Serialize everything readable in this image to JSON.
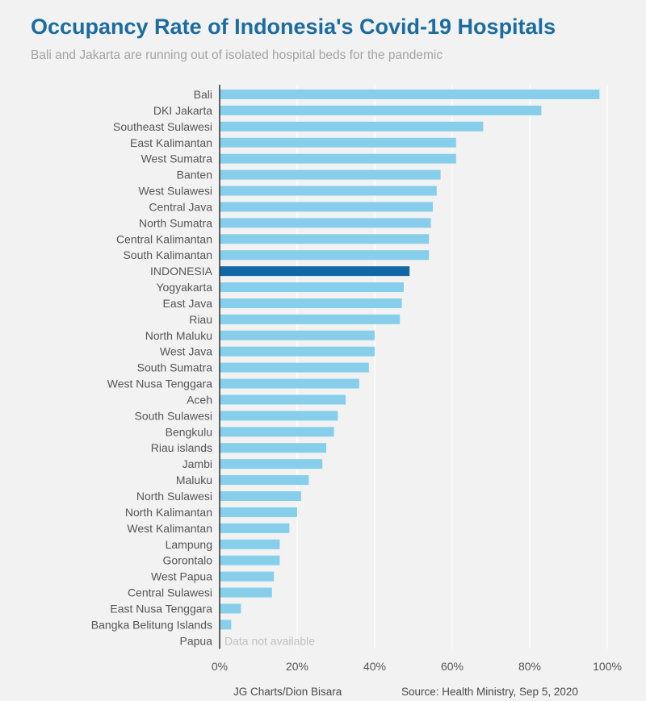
{
  "title": "Occupancy Rate of Indonesia's Covid-19 Hospitals",
  "subtitle": "Bali and Jakarta are running out of isolated hospital beds for the pandemic",
  "footer": {
    "credit": "JG Charts/Dion Bisara",
    "source": "Source: Health Ministry, Sep 5, 2020"
  },
  "colors": {
    "bar": "#87ceeb",
    "highlight": "#1467a5",
    "label": "#555555",
    "na": "#c0c0c0",
    "grid": "#ffffff",
    "axis": "#333333"
  },
  "chart_data": {
    "type": "bar",
    "orientation": "horizontal",
    "categories": [
      "Bali",
      "DKI Jakarta",
      "Southeast Sulawesi",
      "East Kalimantan",
      "West Sumatra",
      "Banten",
      "West Sulawesi",
      "Central Java",
      "North Sumatra",
      "Central Kalimantan",
      "South Kalimantan",
      "INDONESIA",
      "Yogyakarta",
      "East Java",
      "Riau",
      "North Maluku",
      "West Java",
      "South Sumatra",
      "West Nusa Tenggara",
      "Aceh",
      "South Sulawesi",
      "Bengkulu",
      "Riau islands",
      "Jambi",
      "Maluku",
      "North Sulawesi",
      "North Kalimantan",
      "West Kalimantan",
      "Lampung",
      "Gorontalo",
      "West Papua",
      "Central Sulawesi",
      "East Nusa Tenggara",
      "Bangka Belitung Islands",
      "Papua"
    ],
    "values": [
      98,
      83,
      68,
      61,
      61,
      57,
      56,
      55,
      54.5,
      54,
      54,
      49,
      47.5,
      47,
      46.5,
      40,
      40,
      38.5,
      36,
      32.5,
      30.5,
      29.5,
      27.5,
      26.5,
      23,
      21,
      20,
      18,
      15.5,
      15.5,
      14,
      13.5,
      5.5,
      3,
      null
    ],
    "highlight": "INDONESIA",
    "missing_label": "Data not available",
    "xlim": [
      0,
      100
    ],
    "x_ticks": [
      0,
      20,
      40,
      60,
      80,
      100
    ],
    "x_tick_labels": [
      "0%",
      "20%",
      "40%",
      "60%",
      "80%",
      "100%"
    ],
    "xlabel": "",
    "ylabel": "",
    "grid": true,
    "legend": "none"
  }
}
